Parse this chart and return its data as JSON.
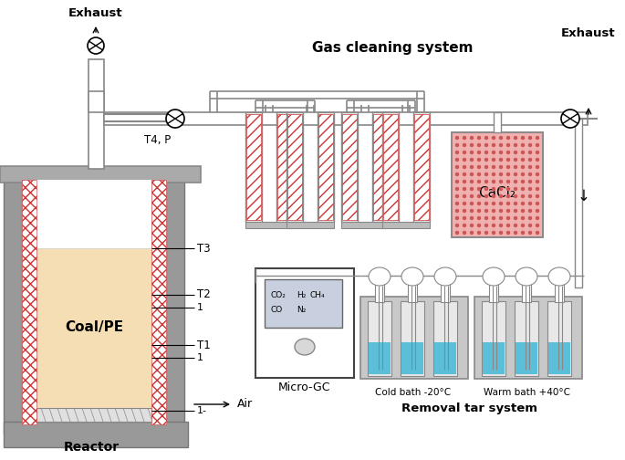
{
  "figsize": [
    6.85,
    5.04
  ],
  "dpi": 100,
  "gray_dark": "#888888",
  "gray_mid": "#aaaaaa",
  "gray_light": "#cccccc",
  "gray_bg": "#dddddd",
  "red_hatch": "#cc3333",
  "coal_color": "#f5deb3",
  "blue_liquid": "#5bbfda",
  "cacl2_pink": "#f0b0b0",
  "mgc_screen": "#c8d0e0",
  "gas_title": "Gas cleaning system",
  "exhaust1": "Exhaust",
  "exhaust2": "Exhaust",
  "t4p": "T4, P",
  "t3": "T3",
  "t2": "T2",
  "t1": "T1",
  "lbl1a": "1",
  "lbl1b": "1",
  "lbl1c": "1-",
  "coalpe": "Coal/PE",
  "reactor": "Reactor",
  "air": "Air",
  "cacl2": "CaCl₂",
  "microgc": "Micro-GC",
  "removal": "Removal tar system",
  "cold": "Cold bath -20°C",
  "warm": "Warm bath +40°C",
  "co2": "CO₂",
  "h2": "H₂",
  "ch4": "CH₄",
  "co": "CO",
  "n2": "N₂"
}
